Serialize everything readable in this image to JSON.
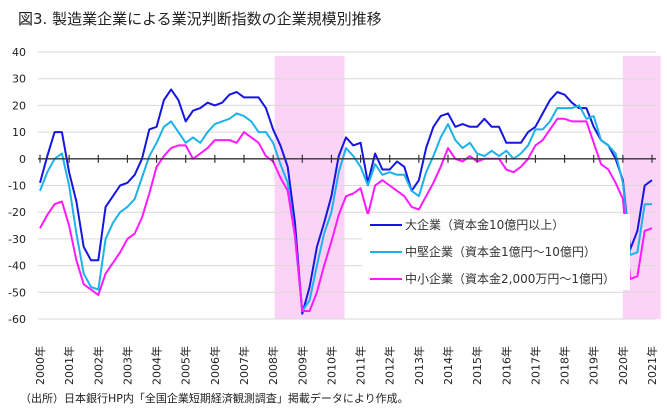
{
  "title": "図3. 製造業企業による業況判断指数の企業規模別推移",
  "source": "（出所）日本銀行HP内「全国企業短期経済観測調査」掲載データにより作成。",
  "colors": {
    "large": "#1616e0",
    "medium": "#1cb2ea",
    "small": "#ff1aff",
    "shade": "#fbd3f7",
    "grid": "#d9d9d9",
    "axis": "#333333"
  },
  "chart_data": {
    "type": "line",
    "title": "図3. 製造業企業による業況判断指数の企業規模別推移",
    "xlabel": "",
    "ylabel": "",
    "ylim": [
      -60,
      40
    ],
    "yticks": [
      40,
      30,
      20,
      10,
      0,
      -10,
      -20,
      -30,
      -40,
      -50,
      -60
    ],
    "xlim": [
      2000,
      2021
    ],
    "xtick_labels": [
      "2000年",
      "2001年",
      "2002年",
      "2003年",
      "2004年",
      "2005年",
      "2006年",
      "2007年",
      "2008年",
      "2009年",
      "2010年",
      "2011年",
      "2012年",
      "2013年",
      "2014年",
      "2015年",
      "2016年",
      "2017年",
      "2018年",
      "2019年",
      "2020年",
      "2021年"
    ],
    "x_start": 2000,
    "x_step": 0.25,
    "grid": true,
    "legend_position": "lower-right",
    "shaded_periods": [
      [
        2008.05,
        2010.45
      ],
      [
        2020.0,
        2021.3
      ]
    ],
    "series": [
      {
        "name": "大企業（資本金10億円以上）",
        "key": "large",
        "values": [
          -9,
          1,
          10,
          10,
          -5,
          -16,
          -33,
          -38,
          -38,
          -18,
          -14,
          -10,
          -9,
          -6,
          0,
          11,
          12,
          22,
          26,
          22,
          14,
          18,
          19,
          21,
          20,
          21,
          24,
          25,
          23,
          23,
          23,
          19,
          11,
          5,
          -3,
          -24,
          -58,
          -48,
          -33,
          -24,
          -14,
          1,
          8,
          5,
          6,
          -9,
          2,
          -4,
          -4,
          -1,
          -3,
          -12,
          -8,
          4,
          12,
          16,
          17,
          12,
          13,
          12,
          12,
          15,
          12,
          12,
          6,
          6,
          6,
          10,
          12,
          17,
          22,
          25,
          24,
          21,
          19,
          19,
          12,
          7,
          5,
          0,
          -8,
          -34,
          -27,
          -10,
          -8
        ]
      },
      {
        "name": "中堅企業（資本金1億円～10億円）",
        "key": "medium",
        "values": [
          -12,
          -5,
          0,
          2,
          -10,
          -28,
          -43,
          -48,
          -49,
          -30,
          -24,
          -20,
          -18,
          -15,
          -7,
          1,
          6,
          12,
          14,
          10,
          6,
          8,
          6,
          10,
          13,
          14,
          15,
          17,
          16,
          14,
          10,
          10,
          6,
          -2,
          -9,
          -29,
          -57,
          -53,
          -40,
          -28,
          -20,
          -5,
          4,
          1,
          -3,
          -10,
          -2,
          -6,
          -5,
          -6,
          -6,
          -12,
          -14,
          -5,
          1,
          8,
          13,
          7,
          4,
          6,
          2,
          1,
          3,
          1,
          3,
          0,
          2,
          5,
          11,
          11,
          14,
          19,
          19,
          19,
          20,
          15,
          16,
          7,
          5,
          2,
          -9,
          -36,
          -35,
          -17,
          -17
        ]
      },
      {
        "name": "中小企業（資本金2,000万円～1億円）",
        "key": "small",
        "values": [
          -26,
          -21,
          -17,
          -16,
          -25,
          -38,
          -47,
          -49,
          -51,
          -43,
          -39,
          -35,
          -30,
          -28,
          -22,
          -13,
          -3,
          1,
          4,
          5,
          5,
          0,
          2,
          4,
          7,
          7,
          7,
          6,
          10,
          8,
          6,
          1,
          -1,
          -7,
          -12,
          -29,
          -57,
          -57,
          -50,
          -40,
          -31,
          -21,
          -14,
          -13,
          -11,
          -21,
          -10,
          -8,
          -10,
          -12,
          -14,
          -18,
          -19,
          -14,
          -9,
          -3,
          4,
          0,
          -1,
          1,
          -1,
          0,
          0,
          0,
          -4,
          -5,
          -3,
          0,
          5,
          7,
          11,
          15,
          15,
          14,
          14,
          14,
          6,
          -2,
          -4,
          -9,
          -15,
          -45,
          -44,
          -27,
          -26
        ]
      }
    ]
  }
}
